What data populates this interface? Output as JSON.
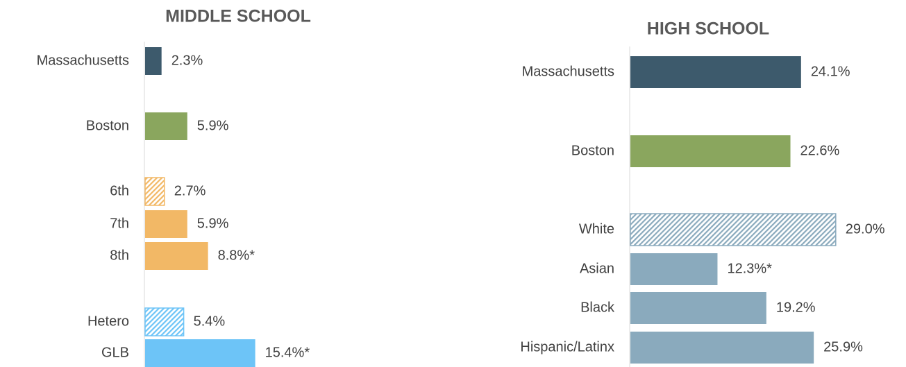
{
  "chart_data": [
    {
      "type": "bar",
      "orientation": "horizontal",
      "title": "MIDDLE SCHOOL",
      "categories": [
        "Massachusetts",
        "Boston",
        "6th",
        "7th",
        "8th",
        "Hetero",
        "GLB"
      ],
      "values": [
        2.3,
        5.9,
        2.7,
        5.9,
        8.8,
        5.4,
        15.4
      ],
      "value_labels": [
        "2.3%",
        "5.9%",
        "2.7%",
        "5.9%",
        "8.8%*",
        "5.4%",
        "15.4%*"
      ],
      "colors": [
        "#3d5a6c",
        "#8aa65e",
        "#f2b866",
        "#f2b866",
        "#f2b866",
        "#6dc4f7",
        "#6dc4f7"
      ],
      "hatch": [
        false,
        false,
        true,
        false,
        false,
        true,
        false
      ]
    },
    {
      "type": "bar",
      "orientation": "horizontal",
      "title": "HIGH SCHOOL",
      "categories": [
        "Massachusetts",
        "Boston",
        "White",
        "Asian",
        "Black",
        "Hispanic/Latinx"
      ],
      "values": [
        24.1,
        22.6,
        29.0,
        12.3,
        19.2,
        25.9
      ],
      "value_labels": [
        "24.1%",
        "22.6%",
        "29.0%",
        "12.3%*",
        "19.2%",
        "25.9%"
      ],
      "colors": [
        "#3d5a6c",
        "#8aa65e",
        "#8aaabd",
        "#8aaabd",
        "#8aaabd",
        "#8aaabd"
      ],
      "hatch": [
        false,
        false,
        true,
        false,
        false,
        false
      ]
    }
  ]
}
